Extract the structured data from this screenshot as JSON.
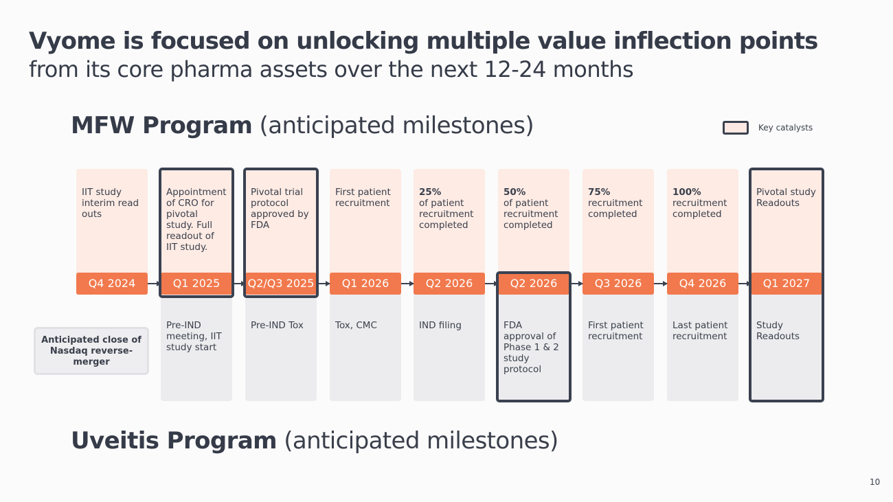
{
  "slide": {
    "title_bold": "Vyome is focused on unlocking multiple value inflection points",
    "title_sub": "from its core pharma assets over the next 12-24 months",
    "page_number": "10"
  },
  "mfw": {
    "heading_bold": "MFW Program",
    "heading_light": "(anticipated milestones)"
  },
  "uveitis": {
    "heading_bold": "Uveitis Program",
    "heading_light": "(anticipated milestones)"
  },
  "legend": {
    "label": "Key catalysts"
  },
  "callout": {
    "text": "Anticipated close of Nasdaq reverse-merger"
  },
  "timeline": [
    {
      "quarter": "Q4 2024",
      "top_bold": "",
      "top_text": "IIT study interim read outs",
      "bottom_text": ""
    },
    {
      "quarter": "Q1 2025",
      "top_bold": "",
      "top_text": "Appointment of CRO for pivotal study. Full readout of IIT study.",
      "bottom_text": "Pre-IND meeting, IIT study start"
    },
    {
      "quarter": "Q2/Q3 2025",
      "top_bold": "",
      "top_text": "Pivotal trial protocol approved by FDA",
      "bottom_text": "Pre-IND Tox"
    },
    {
      "quarter": "Q1 2026",
      "top_bold": "",
      "top_text": "First patient recruitment",
      "bottom_text": "Tox, CMC"
    },
    {
      "quarter": "Q2 2026",
      "top_bold": "25%",
      "top_text": "of patient recruitment completed",
      "bottom_text": "IND filing"
    },
    {
      "quarter": "Q2 2026",
      "top_bold": "50%",
      "top_text": "of patient recruitment completed",
      "bottom_text": "FDA approval of Phase 1 & 2 study protocol"
    },
    {
      "quarter": "Q3 2026",
      "top_bold": "75%",
      "top_text": "recruitment completed",
      "bottom_text": "First patient recruitment"
    },
    {
      "quarter": "Q4 2026",
      "top_bold": "100%",
      "top_text": "recruitment completed",
      "bottom_text": "Last patient recruitment"
    },
    {
      "quarter": "Q1 2027",
      "top_bold": "",
      "top_text": "Pivotal study Readouts",
      "bottom_text": "Study Readouts"
    }
  ]
}
